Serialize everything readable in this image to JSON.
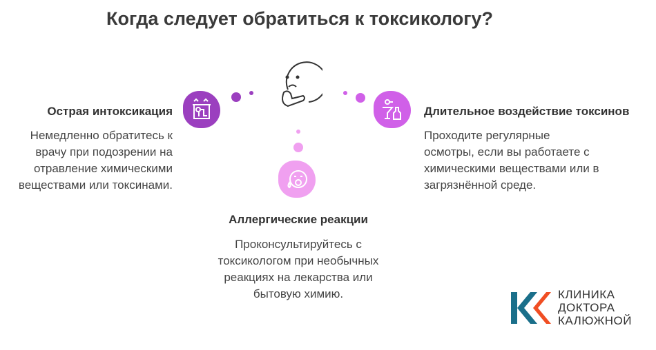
{
  "title": "Когда следует обратиться к токсикологу?",
  "items": [
    {
      "title": "Острая интоксикация",
      "text": "Немедленно обратитесь к врачу при подозрении на отравление химическими веществами или токсинами.",
      "color": "#9b3fbf",
      "icon": "fireplace-poison-icon"
    },
    {
      "title": "Аллергические реакции",
      "text": "Проконсультируйтесь с токсикологом при необычных реакциях на лекарства или бытовую химию.",
      "color": "#f0a0f0",
      "icon": "sick-face-icon"
    },
    {
      "title": "Длительное воздействие токсинов",
      "text": "Проходите регулярные осмотры, если вы работаете с химическими веществами или в загрязнённой среде.",
      "color": "#d060e8",
      "icon": "chemicals-icon"
    }
  ],
  "center_icon": "thinking-face-icon",
  "logo": {
    "lines": [
      "КЛИНИКА",
      "ДОКТОРА",
      "КАЛЮЖНОЙ"
    ],
    "colors": [
      "#1a6f8a",
      "#f04e23"
    ]
  }
}
